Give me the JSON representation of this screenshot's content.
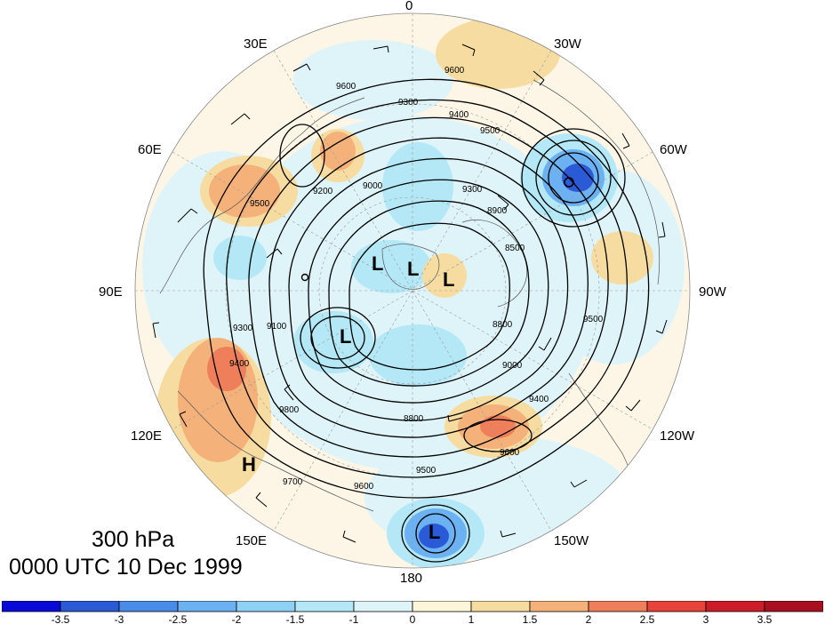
{
  "title": {
    "level": "300 hPa",
    "time": "0000 UTC 10 Dec 1999"
  },
  "longitude_labels": {
    "lon_0": "0",
    "lon_30w": "30W",
    "lon_60w": "60W",
    "lon_90w": "90W",
    "lon_120w": "120W",
    "lon_150w": "150W",
    "lon_180": "180",
    "lon_150e": "150E",
    "lon_120e": "120E",
    "lon_90e": "90E",
    "lon_60e": "60E",
    "lon_30e": "30E"
  },
  "pressure_centers": {
    "l1": "L",
    "l2": "L",
    "l3": "L",
    "l4": "L",
    "l5": "L",
    "h1": "H"
  },
  "contour_labels": {
    "c9600a": "9600",
    "c9300a": "9300",
    "c9500a": "9500",
    "c9200a": "9200",
    "c9600b": "9600",
    "c9400a": "9400",
    "c9000a": "9000",
    "c9300b": "9300",
    "c8900a": "8900",
    "c8500a": "8500",
    "c9500b": "9500",
    "c9400b": "9400",
    "c9000b": "9000",
    "c8800a": "8800",
    "c9500c": "9500",
    "c9600c": "9600",
    "c9700a": "9700",
    "c9500d": "9500",
    "c9400c": "9400",
    "c9300c": "9300",
    "c9100a": "9100",
    "c9600d": "9600",
    "c9800a": "9800",
    "c8800b": "8800"
  },
  "colorbar": {
    "ticks": [
      "-3.5",
      "-3",
      "-2.5",
      "-2",
      "-1.5",
      "-1",
      "0",
      "1",
      "1.5",
      "2",
      "2.5",
      "3",
      "3.5"
    ],
    "colors": [
      "#0a0ad8",
      "#2a5ad6",
      "#4a8be8",
      "#6cb1f2",
      "#8fd0f5",
      "#b4e8f6",
      "#dff4f8",
      "#fdf6d8",
      "#f6dca0",
      "#f4b27a",
      "#ee7f5a",
      "#e8433a",
      "#cc1c2a",
      "#a8101f"
    ]
  }
}
